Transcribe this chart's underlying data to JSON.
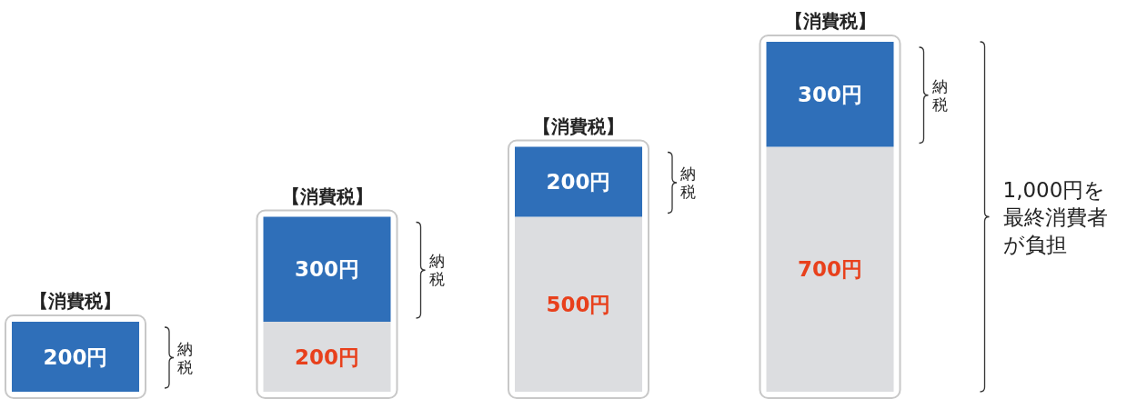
{
  "chart_data": {
    "type": "bar",
    "stacked": true,
    "categories": [
      null,
      null,
      null,
      null
    ],
    "series": [
      {
        "color": "#dcdde0",
        "values": [
          null,
          200,
          500,
          700
        ],
        "value_labels": [
          null,
          "200円",
          "500円",
          "700円"
        ]
      },
      {
        "color": "#2f6fb9",
        "values": [
          200,
          300,
          200,
          300
        ],
        "value_labels": [
          "200円",
          "300円",
          "200円",
          "300円"
        ]
      }
    ],
    "annotations": [
      "【消費税】",
      "【消費税】",
      "【消費税】",
      "【消費税】",
      "納税",
      "納税",
      "納税",
      "納税",
      "1,000円を最終消費者が負担"
    ]
  }
}
